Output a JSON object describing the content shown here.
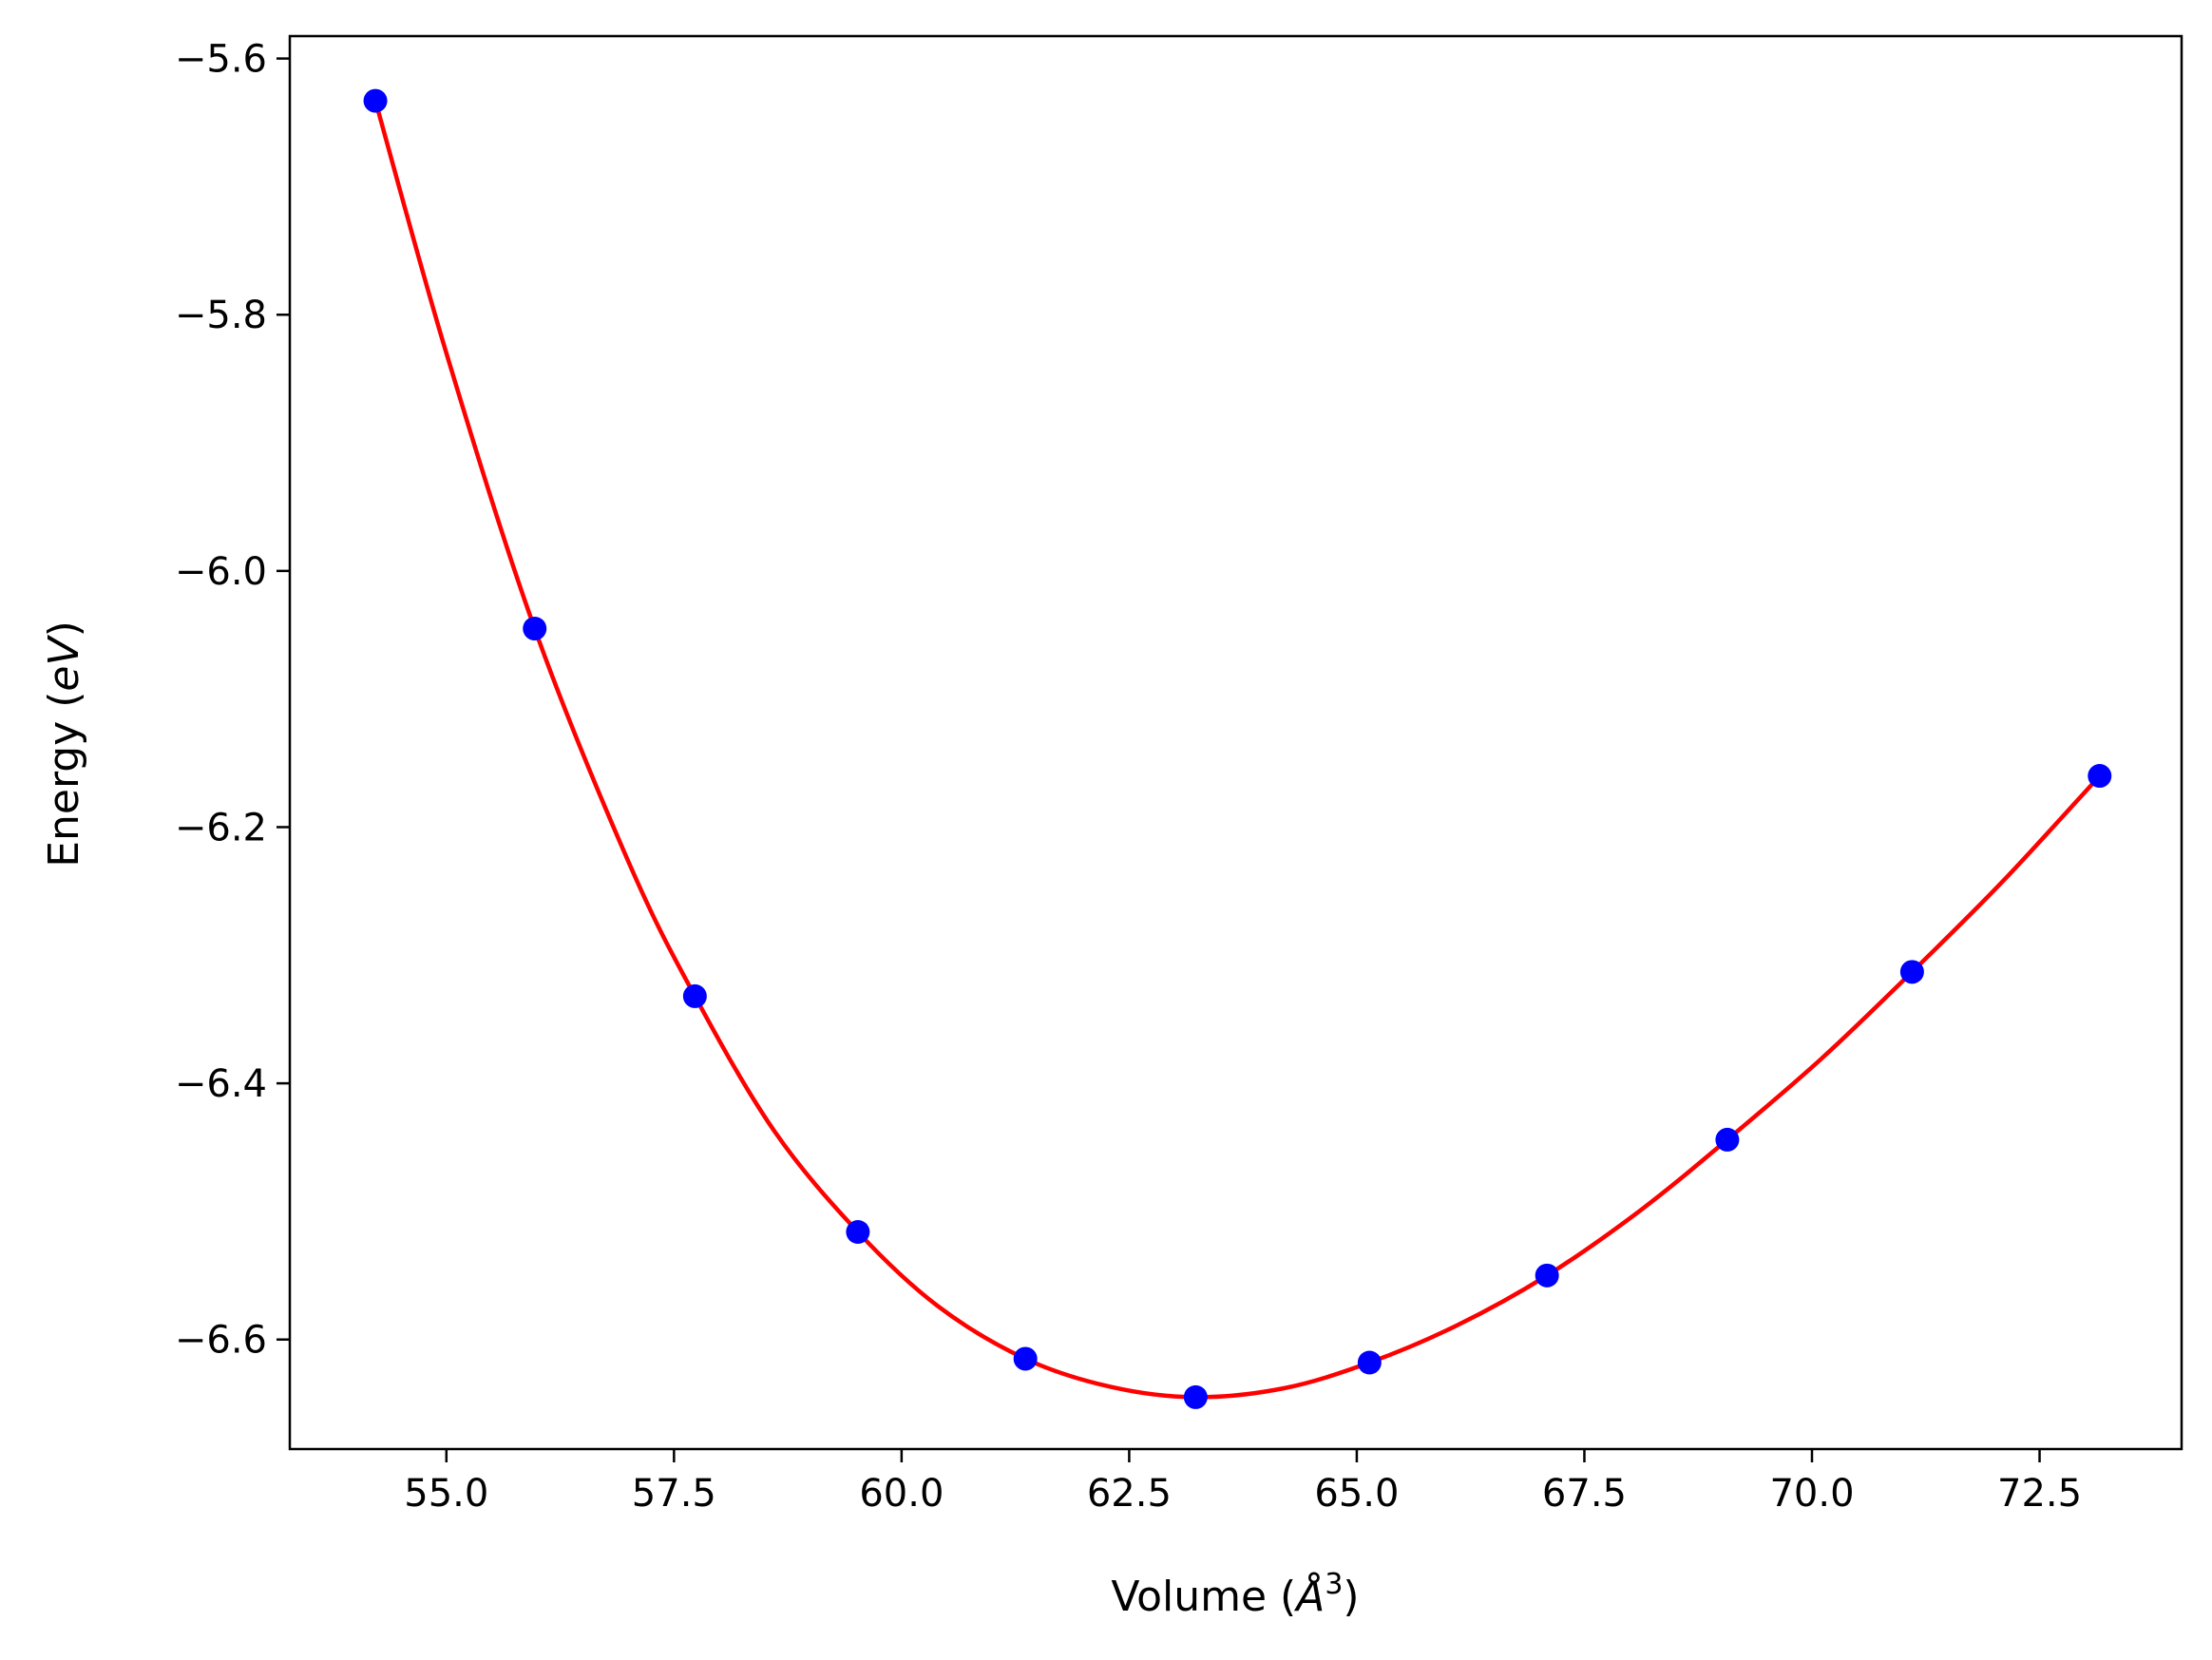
{
  "chart_data": {
    "type": "scatter",
    "title": "",
    "xlabel": "Volume",
    "xlabel_unit_base": "Å",
    "xlabel_unit_exp": "3",
    "ylabel": "Energy",
    "ylabel_unit": "eV",
    "xlim": [
      53.28,
      74.06
    ],
    "ylim": [
      -6.6855,
      -5.5825
    ],
    "grid": false,
    "legend": "none",
    "x_ticks": [
      55.0,
      57.5,
      60.0,
      62.5,
      65.0,
      67.5,
      70.0,
      72.5
    ],
    "x_tick_labels": [
      "55.0",
      "57.5",
      "60.0",
      "62.5",
      "65.0",
      "67.5",
      "70.0",
      "72.5"
    ],
    "y_ticks": [
      -5.6,
      -5.8,
      -6.0,
      -6.2,
      -6.4,
      -6.6
    ],
    "y_tick_labels": [
      "−5.6",
      "−5.8",
      "−6.0",
      "−6.2",
      "−6.4",
      "−6.6"
    ],
    "series": [
      {
        "kind": "points",
        "color": "#0000ff",
        "x": [
          54.22,
          55.97,
          57.73,
          59.52,
          61.36,
          63.23,
          65.14,
          67.09,
          69.07,
          71.1,
          73.16
        ],
        "y": [
          -5.633,
          -6.045,
          -6.332,
          -6.516,
          -6.615,
          -6.645,
          -6.618,
          -6.55,
          -6.444,
          -6.313,
          -6.16
        ]
      },
      {
        "kind": "fit-curve",
        "color": "#ff0000",
        "x": [
          54.22,
          55.0,
          55.97,
          57.0,
          57.73,
          58.6,
          59.52,
          60.4,
          61.36,
          62.3,
          63.23,
          64.2,
          65.14,
          66.1,
          67.09,
          68.1,
          69.07,
          70.1,
          71.1,
          72.1,
          73.16
        ],
        "y": [
          -5.633,
          -5.83,
          -6.045,
          -6.227,
          -6.332,
          -6.437,
          -6.516,
          -6.574,
          -6.615,
          -6.637,
          -6.645,
          -6.638,
          -6.618,
          -6.589,
          -6.55,
          -6.5,
          -6.444,
          -6.381,
          -6.313,
          -6.242,
          -6.16
        ]
      }
    ]
  }
}
